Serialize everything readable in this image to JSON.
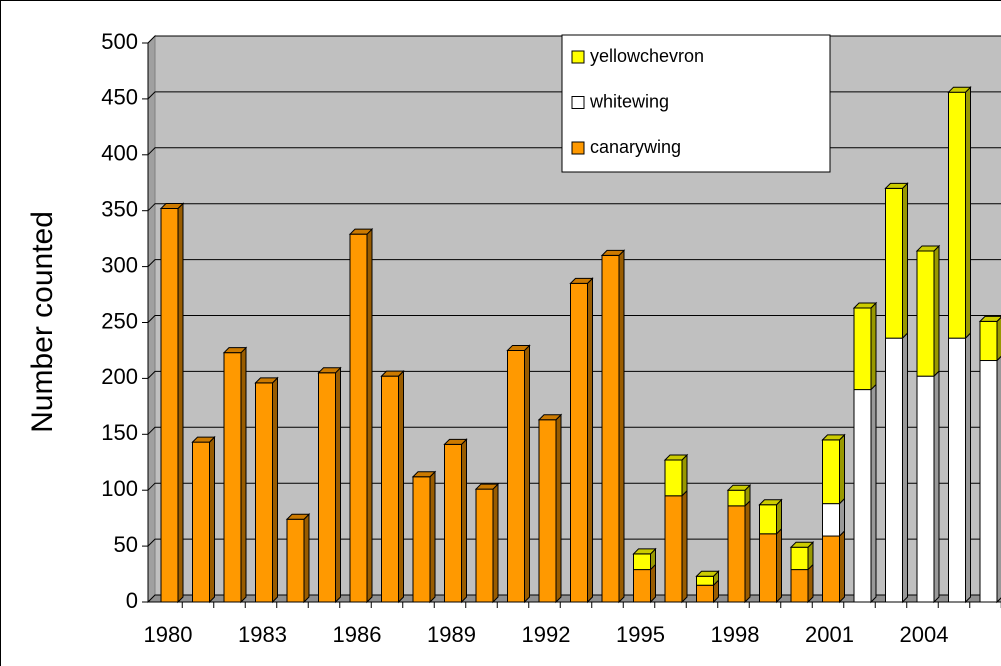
{
  "chart_data": {
    "type": "bar",
    "stacked": true,
    "y_label": "Number counted",
    "categories": [
      "1980",
      null,
      null,
      "1983",
      null,
      null,
      "1986",
      null,
      null,
      "1989",
      null,
      null,
      "1992",
      null,
      null,
      "1995",
      null,
      null,
      "1998",
      null,
      null,
      "2001",
      null,
      null,
      "2004",
      null,
      null
    ],
    "series": [
      {
        "name": "canarywing",
        "color": "#ff9900",
        "values": [
          352,
          143,
          223,
          196,
          74,
          205,
          329,
          202,
          112,
          141,
          101,
          225,
          163,
          285,
          310,
          29,
          95,
          15,
          86,
          61,
          29,
          59,
          0,
          0,
          0,
          0,
          0
        ]
      },
      {
        "name": "whitewing",
        "color": "#ffffff",
        "values": [
          0,
          0,
          0,
          0,
          0,
          0,
          0,
          0,
          0,
          0,
          0,
          0,
          0,
          0,
          0,
          0,
          0,
          0,
          0,
          0,
          0,
          29,
          190,
          236,
          202,
          236,
          216
        ]
      },
      {
        "name": "yellowchevron",
        "color": "#ffff00",
        "values": [
          0,
          0,
          0,
          0,
          0,
          0,
          0,
          0,
          0,
          0,
          0,
          0,
          0,
          0,
          0,
          14,
          32,
          8,
          14,
          26,
          20,
          57,
          73,
          134,
          112,
          220,
          35
        ]
      }
    ],
    "ylim": [
      0,
      500
    ],
    "yticks": [
      0,
      50,
      100,
      150,
      200,
      250,
      300,
      350,
      400,
      450,
      500
    ],
    "grid": true
  }
}
